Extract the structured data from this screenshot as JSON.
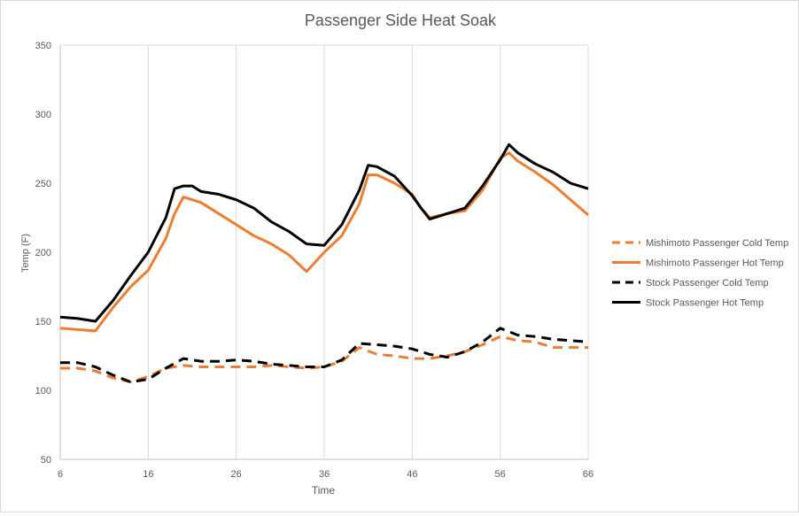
{
  "chart_data": {
    "type": "line",
    "title": "Passenger Side Heat Soak",
    "xlabel": "Time",
    "ylabel": "Temp (F)",
    "xlim": [
      6,
      66
    ],
    "ylim": [
      50,
      350
    ],
    "x_ticks": [
      6,
      16,
      26,
      36,
      46,
      56,
      66
    ],
    "y_ticks": [
      50,
      100,
      150,
      200,
      250,
      300,
      350
    ],
    "grid": "vertical",
    "legend_position": "right",
    "series": [
      {
        "name": "Mishimoto Passenger Cold Temp",
        "color": "#ED7D31",
        "dash": "dashed",
        "x": [
          6,
          8,
          10,
          12,
          14,
          16,
          18,
          20,
          22,
          24,
          26,
          28,
          30,
          32,
          34,
          36,
          38,
          40,
          42,
          44,
          46,
          48,
          50,
          52,
          54,
          56,
          58,
          60,
          62,
          64,
          66
        ],
        "y": [
          116,
          116,
          114,
          109,
          106,
          110,
          116,
          118,
          117,
          117,
          117,
          117,
          118,
          117,
          116,
          117,
          121,
          131,
          126,
          125,
          123,
          123,
          125,
          128,
          133,
          139,
          136,
          135,
          131,
          131,
          131
        ]
      },
      {
        "name": "Mishimoto Passenger Hot Temp",
        "color": "#ED7D31",
        "dash": "solid",
        "x": [
          6,
          8,
          10,
          12,
          14,
          16,
          18,
          19,
          20,
          22,
          24,
          26,
          28,
          30,
          32,
          34,
          36,
          38,
          40,
          41,
          42,
          44,
          46,
          47,
          48,
          50,
          52,
          54,
          56,
          57,
          58,
          60,
          62,
          64,
          66
        ],
        "y": [
          145,
          144,
          143,
          160,
          175,
          187,
          210,
          228,
          240,
          236,
          228,
          220,
          212,
          206,
          198,
          186,
          200,
          212,
          235,
          256,
          256,
          250,
          242,
          232,
          225,
          228,
          230,
          245,
          268,
          272,
          266,
          258,
          249,
          238,
          227
        ]
      },
      {
        "name": "Stock Passenger Cold Temp",
        "color": "#000000",
        "dash": "dashed",
        "x": [
          6,
          8,
          10,
          12,
          14,
          16,
          18,
          20,
          22,
          24,
          26,
          28,
          30,
          32,
          34,
          36,
          38,
          40,
          42,
          44,
          46,
          48,
          50,
          52,
          54,
          56,
          58,
          60,
          62,
          64,
          66
        ],
        "y": [
          120,
          120,
          117,
          111,
          106,
          108,
          116,
          123,
          121,
          121,
          122,
          121,
          119,
          118,
          117,
          117,
          122,
          134,
          133,
          132,
          130,
          126,
          124,
          128,
          135,
          145,
          140,
          139,
          137,
          136,
          135
        ]
      },
      {
        "name": "Stock Passenger Hot Temp",
        "color": "#000000",
        "dash": "solid",
        "x": [
          6,
          8,
          10,
          12,
          14,
          16,
          18,
          19,
          20,
          21,
          22,
          24,
          26,
          28,
          30,
          32,
          34,
          36,
          38,
          40,
          41,
          42,
          44,
          46,
          47,
          48,
          50,
          52,
          54,
          56,
          57,
          58,
          60,
          62,
          64,
          66
        ],
        "y": [
          153,
          152,
          150,
          165,
          183,
          200,
          225,
          246,
          248,
          248,
          244,
          242,
          238,
          232,
          222,
          215,
          206,
          205,
          220,
          245,
          263,
          262,
          255,
          241,
          232,
          224,
          228,
          232,
          248,
          267,
          278,
          272,
          264,
          258,
          250,
          246
        ]
      }
    ]
  }
}
